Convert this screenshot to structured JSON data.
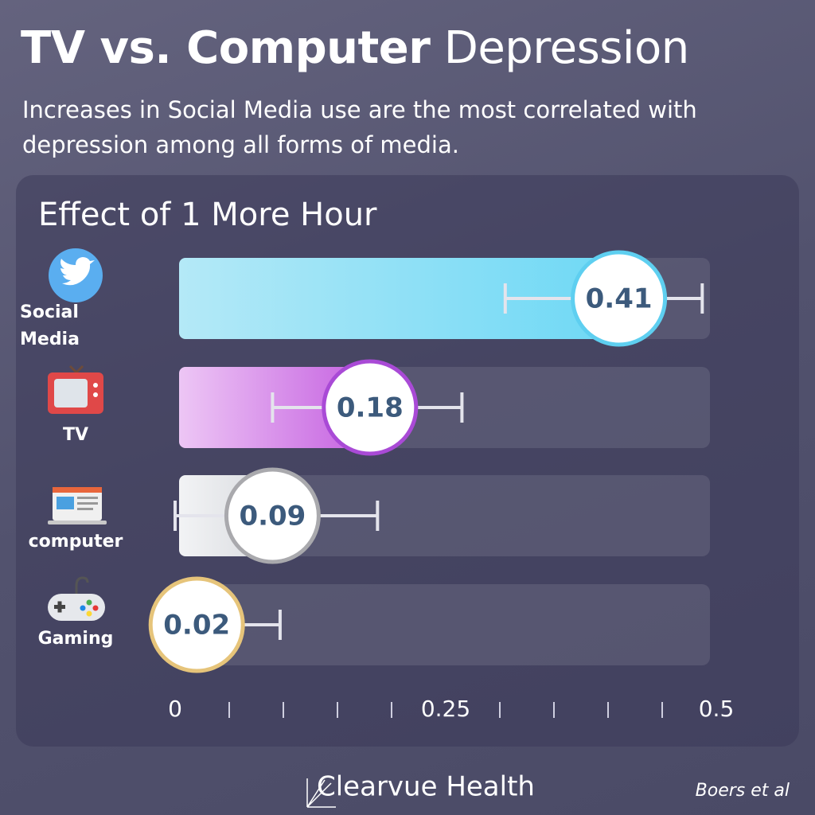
{
  "chart_data": {
    "type": "bar",
    "title_bold": "TV vs. Computer",
    "title_rest": "Depression",
    "subtitle": "Increases in Social Media use are the most correlated with depression among all forms of media.",
    "chart_title": "Effect of 1 More Hour",
    "categories": [
      "Social Media",
      "TV",
      "computer",
      "Gaming"
    ],
    "values": [
      0.41,
      0.18,
      0.09,
      0.02
    ],
    "ci_low": [
      0.305,
      0.09,
      0,
      0
    ],
    "ci_high": [
      0.487,
      0.265,
      0.187,
      0.097
    ],
    "colors": [
      "#6dd8f5",
      "#c45ee0",
      "#e6e8ec",
      "#e8c980"
    ],
    "border_colors": [
      "#5ecff0",
      "#a94ad6",
      "#a9a9ad",
      "#e6c47a"
    ],
    "xlim": [
      0,
      0.5
    ],
    "xticks": [
      0,
      0.25,
      0.5
    ],
    "minor_xticks": [
      0.05,
      0.1,
      0.15,
      0.2,
      0.3,
      0.35,
      0.4,
      0.45
    ],
    "brand": "Clearvue Health",
    "source": "Boers et al"
  }
}
